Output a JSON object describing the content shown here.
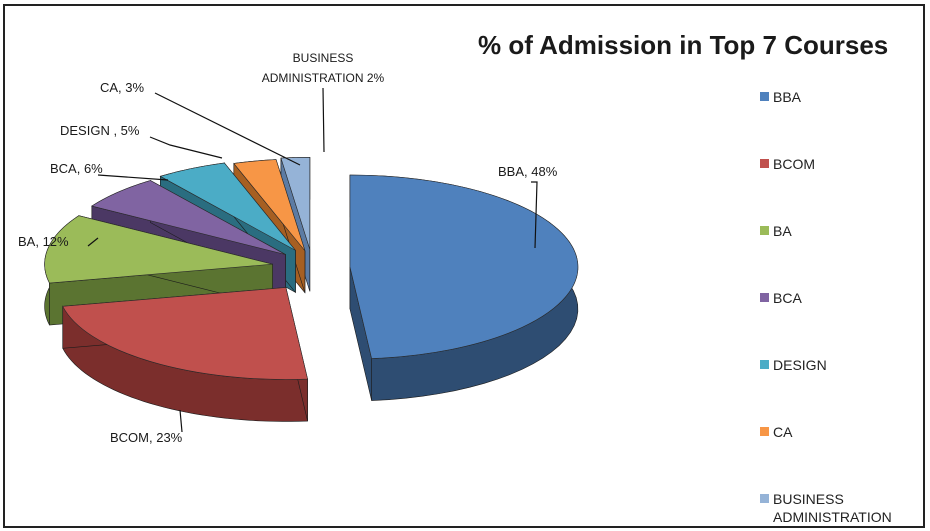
{
  "chart_data": {
    "type": "pie",
    "title": "% of Admission in Top 7 Courses",
    "style": "3d-exploded",
    "legend_position": "right",
    "slices": [
      {
        "name": "BBA",
        "value": 48,
        "data_label": "BBA, 48%",
        "color": "#4F81BD",
        "side_color": "#2E4D72"
      },
      {
        "name": "BCOM",
        "value": 23,
        "data_label": "BCOM, 23%",
        "color": "#C0504D",
        "side_color": "#7B2E2C"
      },
      {
        "name": "BA",
        "value": 12,
        "data_label": "BA, 12%",
        "color": "#9BBB59",
        "side_color": "#5B7431"
      },
      {
        "name": "BCA",
        "value": 6,
        "data_label": "BCA, 6%",
        "color": "#8064A2",
        "side_color": "#4B3864"
      },
      {
        "name": "DESIGN",
        "value": 5,
        "data_label": "DESIGN , 5%",
        "color": "#4BACC6",
        "side_color": "#2A6D80"
      },
      {
        "name": "CA",
        "value": 3,
        "data_label": "CA, 3%",
        "color": "#F79646",
        "side_color": "#A65F22"
      },
      {
        "name": "BUSINESS ADMINISTRATION",
        "value": 2,
        "data_label_lines": [
          "BUSINESS",
          "ADMINISTRATION 2%"
        ],
        "color": "#95B3D7",
        "side_color": "#5C7BA3"
      }
    ],
    "legend": [
      {
        "label": "BBA"
      },
      {
        "label": "BCOM"
      },
      {
        "label": "BA"
      },
      {
        "label": "BCA"
      },
      {
        "label": "DESIGN"
      },
      {
        "label": "CA"
      },
      {
        "label": "BUSINESS ADMINISTRATION",
        "lines": [
          "BUSINESS",
          "ADMINISTRATION"
        ]
      }
    ]
  }
}
